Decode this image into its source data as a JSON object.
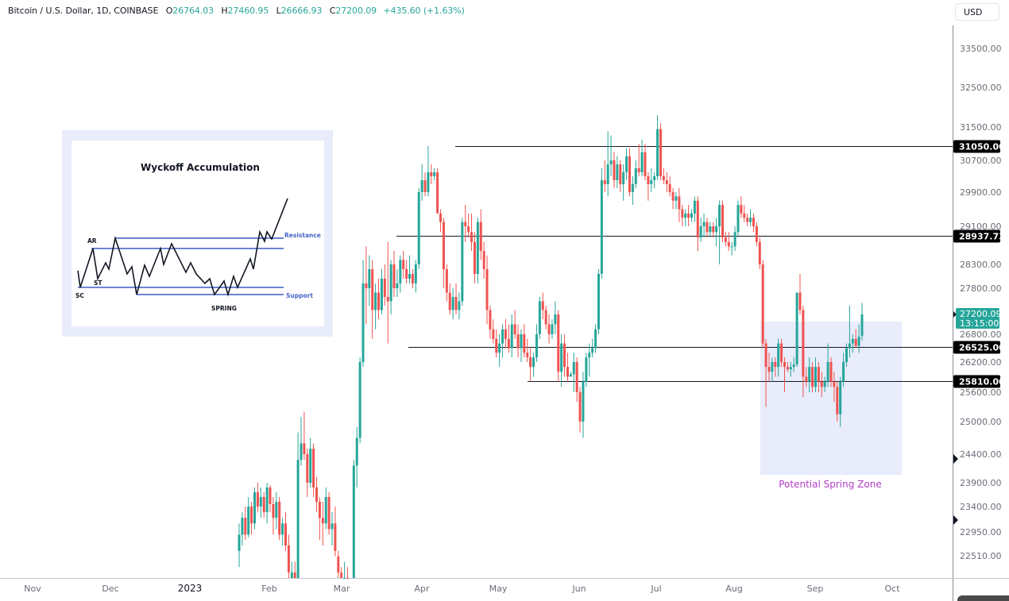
{
  "header": {
    "symbol": "Bitcoin / U.S. Dollar, 1D, COINBASE",
    "open_label": "O",
    "open": "26764.03",
    "high_label": "H",
    "high": "27460.95",
    "low_label": "L",
    "low": "26666.93",
    "close_label": "C",
    "close": "27200.09",
    "change": "+435.60 (+1.63%)"
  },
  "currency_button": "USD",
  "colors": {
    "up": "#26a69a",
    "down": "#ef5350",
    "level_line": "#131722",
    "zone_fill": "#e8ecfb",
    "zone_text": "#b13ec9",
    "resistance_blue": "#4a64c9"
  },
  "inset": {
    "title": "Wyckoff Accumulation",
    "labels": {
      "ar": "AR",
      "st": "ST",
      "sc": "SC",
      "spring": "SPRING",
      "resistance": "Resistance",
      "support": "Support"
    }
  },
  "zone": {
    "label": "Potential Spring Zone"
  },
  "chart_data": {
    "type": "candlestick",
    "title": "Bitcoin / U.S. Dollar, 1D, COINBASE",
    "xlabel": "",
    "ylabel": "USD",
    "scale": "log",
    "ylim": [
      22300,
      33900
    ],
    "y_ticks": [
      "33500.00",
      "32500.00",
      "31500.00",
      "30700.00",
      "29900.00",
      "29100.00",
      "28300.00",
      "27800.00",
      "26800.00",
      "26200.00",
      "25600.00",
      "25000.00",
      "24400.00",
      "23900.00",
      "23400.00",
      "22950.00",
      "22510.00"
    ],
    "x_ticks": [
      "Nov",
      "Dec",
      "2023",
      "Feb",
      "Mar",
      "Apr",
      "May",
      "Jun",
      "Jul",
      "Aug",
      "Sep",
      "Oct"
    ],
    "last_price": {
      "value": "27200.09",
      "countdown": "13:15:00"
    },
    "horizontal_levels": [
      {
        "price": 31050.0,
        "label": "31050.00",
        "start": "Apr 13"
      },
      {
        "price": 28937.73,
        "label": "28937.73",
        "start": "Mar 20"
      },
      {
        "price": 26525.0,
        "label": "26525.00",
        "start": "Mar 24"
      },
      {
        "price": 25810.0,
        "label": "25810.00",
        "start": "May 12"
      }
    ],
    "zones": [
      {
        "label": "Potential Spring Zone",
        "from": "Aug 15",
        "to": "Oct 10",
        "top": 27060,
        "bottom": 24000
      }
    ],
    "annotations": [
      "Wyckoff Accumulation inset (AR, ST, SC, SPRING, Resistance, Support)"
    ],
    "ohlc_note": "Daily candles approx. Jan 20 2023 – Sep 19 2023 (values estimated from pixels)",
    "candles": [
      [
        22600,
        23100,
        22300,
        22900
      ],
      [
        22900,
        23300,
        22700,
        23200
      ],
      [
        23200,
        23400,
        22800,
        22900
      ],
      [
        22900,
        23600,
        22850,
        23400
      ],
      [
        23400,
        23500,
        22900,
        23100
      ],
      [
        23100,
        23800,
        23000,
        23700
      ],
      [
        23700,
        23900,
        23300,
        23400
      ],
      [
        23400,
        23800,
        23200,
        23600
      ],
      [
        23600,
        23700,
        23200,
        23300
      ],
      [
        23300,
        23900,
        23100,
        23800
      ],
      [
        23800,
        23850,
        23300,
        23450
      ],
      [
        23450,
        23600,
        22900,
        23200
      ],
      [
        23200,
        23700,
        23000,
        23500
      ],
      [
        23500,
        23600,
        22800,
        22900
      ],
      [
        22900,
        23200,
        22700,
        23100
      ],
      [
        23100,
        23300,
        22600,
        22700
      ],
      [
        22700,
        22900,
        22000,
        22200
      ],
      [
        21800,
        22400,
        21500,
        22200
      ],
      [
        22200,
        22400,
        21700,
        21800
      ],
      [
        21900,
        24800,
        21800,
        24300
      ],
      [
        24300,
        25100,
        24200,
        24600
      ],
      [
        24600,
        25200,
        24300,
        24400
      ],
      [
        24400,
        24500,
        23600,
        23900
      ],
      [
        23900,
        24700,
        23800,
        24500
      ],
      [
        24500,
        24600,
        23600,
        23800
      ],
      [
        23800,
        24000,
        23300,
        23500
      ],
      [
        23500,
        23600,
        22800,
        23200
      ],
      [
        23200,
        23500,
        22700,
        23100
      ],
      [
        23100,
        23800,
        23000,
        23600
      ],
      [
        23600,
        23700,
        22900,
        23000
      ],
      [
        23000,
        23300,
        22700,
        23100
      ],
      [
        23100,
        23400,
        22500,
        22600
      ],
      [
        22500,
        22600,
        22100,
        22200
      ],
      [
        22200,
        22300,
        21900,
        22000
      ],
      [
        22000,
        22400,
        21900,
        22100
      ],
      [
        22100,
        22300,
        21700,
        21800
      ],
      [
        21800,
        22000,
        21500,
        21700
      ],
      [
        21700,
        24300,
        21600,
        24200
      ],
      [
        24200,
        24900,
        23800,
        24700
      ],
      [
        24700,
        26300,
        24600,
        26200
      ],
      [
        26200,
        28400,
        26100,
        27900
      ],
      [
        27900,
        28700,
        27000,
        27800
      ],
      [
        27800,
        28500,
        27400,
        28200
      ],
      [
        28200,
        28400,
        26700,
        27300
      ],
      [
        27300,
        27900,
        26900,
        27700
      ],
      [
        27700,
        28000,
        27100,
        27300
      ],
      [
        27300,
        28200,
        27200,
        28000
      ],
      [
        28000,
        28300,
        27400,
        27600
      ],
      [
        27600,
        28800,
        26600,
        27500
      ],
      [
        27500,
        28400,
        27200,
        28300
      ],
      [
        28300,
        28600,
        27600,
        27800
      ],
      [
        27800,
        28200,
        27600,
        27900
      ],
      [
        27900,
        28500,
        27700,
        28400
      ],
      [
        28400,
        28600,
        28000,
        28200
      ],
      [
        28200,
        28400,
        27900,
        28000
      ],
      [
        28000,
        28500,
        27900,
        28100
      ],
      [
        28100,
        28200,
        27800,
        27900
      ],
      [
        27900,
        28400,
        27700,
        28300
      ],
      [
        28300,
        30000,
        28200,
        29900
      ],
      [
        29900,
        30600,
        29700,
        30200
      ],
      [
        30200,
        30400,
        29800,
        29900
      ],
      [
        29900,
        31050,
        29800,
        30400
      ],
      [
        30400,
        30600,
        30100,
        30300
      ],
      [
        30300,
        30500,
        30200,
        30400
      ],
      [
        30400,
        30500,
        29500,
        29400
      ],
      [
        29400,
        29500,
        29000,
        29200
      ],
      [
        29200,
        29300,
        27800,
        28200
      ],
      [
        28200,
        28300,
        27500,
        27700
      ],
      [
        27700,
        27900,
        27200,
        27300
      ],
      [
        27300,
        27800,
        27100,
        27600
      ],
      [
        27600,
        27900,
        27200,
        27300
      ],
      [
        27300,
        27700,
        27100,
        27500
      ],
      [
        27500,
        29300,
        27400,
        29200
      ],
      [
        29200,
        29600,
        28800,
        29100
      ],
      [
        29100,
        29400,
        28900,
        29000
      ],
      [
        29000,
        29400,
        28600,
        28800
      ],
      [
        28800,
        29000,
        27900,
        28100
      ],
      [
        28100,
        29300,
        27900,
        29200
      ],
      [
        29200,
        29500,
        28400,
        28600
      ],
      [
        28600,
        28800,
        28000,
        28200
      ],
      [
        28200,
        28500,
        27000,
        27300
      ],
      [
        27300,
        27400,
        26700,
        26900
      ],
      [
        26900,
        27100,
        26600,
        26700
      ],
      [
        26700,
        26900,
        26300,
        26400
      ],
      [
        26400,
        26800,
        26100,
        26600
      ],
      [
        26600,
        27000,
        26300,
        26900
      ],
      [
        26900,
        27100,
        26500,
        26700
      ],
      [
        26700,
        27000,
        26400,
        26500
      ],
      [
        26500,
        27200,
        26300,
        27000
      ],
      [
        27000,
        27300,
        26700,
        26800
      ],
      [
        26800,
        27000,
        26300,
        26500
      ],
      [
        26500,
        26900,
        26200,
        26800
      ],
      [
        26800,
        27000,
        26300,
        26400
      ],
      [
        26400,
        26700,
        26200,
        26300
      ],
      [
        26300,
        26500,
        25800,
        26100
      ],
      [
        26100,
        26400,
        25900,
        26300
      ],
      [
        26300,
        27000,
        26200,
        26800
      ],
      [
        26800,
        27600,
        26700,
        27500
      ],
      [
        27500,
        27700,
        27100,
        27300
      ],
      [
        27300,
        27400,
        26900,
        27000
      ],
      [
        27000,
        27200,
        26600,
        26800
      ],
      [
        26800,
        27100,
        26700,
        27000
      ],
      [
        27000,
        27500,
        26800,
        27200
      ],
      [
        27200,
        27300,
        25800,
        26000
      ],
      [
        26000,
        26800,
        25700,
        26600
      ],
      [
        26600,
        26800,
        25900,
        26100
      ],
      [
        26100,
        26400,
        25800,
        25900
      ],
      [
        25900,
        26000,
        25900,
        25950
      ],
      [
        25950,
        26400,
        25600,
        26200
      ],
      [
        26200,
        26300,
        25400,
        25600
      ],
      [
        25600,
        25700,
        24800,
        25000
      ],
      [
        25000,
        26000,
        24700,
        25800
      ],
      [
        25800,
        26400,
        25700,
        26300
      ],
      [
        26300,
        26600,
        25900,
        26400
      ],
      [
        26400,
        26700,
        26300,
        26500
      ],
      [
        26500,
        27000,
        26400,
        26900
      ],
      [
        26900,
        28200,
        26800,
        28100
      ],
      [
        28100,
        30500,
        28000,
        30200
      ],
      [
        30200,
        30700,
        29900,
        30100
      ],
      [
        30100,
        31400,
        29800,
        30600
      ],
      [
        30600,
        31300,
        30300,
        30700
      ],
      [
        30700,
        30900,
        30000,
        30200
      ],
      [
        30200,
        30800,
        30000,
        30600
      ],
      [
        30600,
        30700,
        29900,
        30100
      ],
      [
        30100,
        30600,
        29700,
        30400
      ],
      [
        30400,
        31000,
        30200,
        30800
      ],
      [
        30800,
        31000,
        29800,
        29900
      ],
      [
        29900,
        30300,
        29600,
        30100
      ],
      [
        30100,
        30700,
        30000,
        30500
      ],
      [
        30500,
        31100,
        30300,
        30400
      ],
      [
        30400,
        31200,
        30300,
        30900
      ],
      [
        30900,
        31100,
        30200,
        30300
      ],
      [
        30300,
        30400,
        29700,
        30100
      ],
      [
        30100,
        30500,
        29900,
        30200
      ],
      [
        30200,
        30400,
        30000,
        30300
      ],
      [
        30300,
        31800,
        30200,
        31450
      ],
      [
        31450,
        31600,
        30200,
        30300
      ],
      [
        30300,
        30500,
        30100,
        30200
      ],
      [
        30200,
        30400,
        29900,
        30100
      ],
      [
        30100,
        30300,
        29800,
        29900
      ],
      [
        29900,
        30000,
        29500,
        29700
      ],
      [
        29700,
        29900,
        29500,
        29800
      ],
      [
        29800,
        30000,
        29200,
        29500
      ],
      [
        29500,
        29600,
        29100,
        29300
      ],
      [
        29300,
        29500,
        29100,
        29400
      ],
      [
        29400,
        29600,
        29100,
        29300
      ],
      [
        29300,
        29500,
        29200,
        29400
      ],
      [
        29400,
        29800,
        29200,
        29700
      ],
      [
        29700,
        29800,
        28600,
        28900
      ],
      [
        28900,
        29300,
        28800,
        29100
      ],
      [
        29100,
        29400,
        28900,
        29200
      ],
      [
        29200,
        29300,
        28900,
        29000
      ],
      [
        29000,
        29200,
        28900,
        29100
      ],
      [
        29100,
        29200,
        28900,
        29000
      ],
      [
        29000,
        29300,
        28700,
        29100
      ],
      [
        29100,
        29700,
        28300,
        29600
      ],
      [
        29600,
        29700,
        28800,
        28900
      ],
      [
        28900,
        29000,
        28700,
        28800
      ],
      [
        28800,
        29000,
        28600,
        28700
      ],
      [
        28700,
        28800,
        28500,
        28700
      ],
      [
        28700,
        29100,
        28600,
        29000
      ],
      [
        29000,
        29700,
        28900,
        29600
      ],
      [
        29600,
        29800,
        29300,
        29400
      ],
      [
        29400,
        29600,
        29200,
        29300
      ],
      [
        29300,
        29400,
        29100,
        29200
      ],
      [
        29200,
        29500,
        29100,
        29300
      ],
      [
        29300,
        29400,
        29000,
        29100
      ],
      [
        29100,
        29200,
        28700,
        28800
      ],
      [
        28800,
        28900,
        28200,
        28300
      ],
      [
        28300,
        28400,
        26500,
        26600
      ],
      [
        26600,
        26700,
        25300,
        26100
      ],
      [
        26100,
        26400,
        25800,
        26000
      ],
      [
        26000,
        26300,
        25800,
        26200
      ],
      [
        26200,
        26300,
        25900,
        26100
      ],
      [
        26100,
        26700,
        25900,
        26600
      ],
      [
        26600,
        26700,
        26100,
        26200
      ],
      [
        26200,
        26300,
        25600,
        26100
      ],
      [
        26100,
        26200,
        26000,
        26050
      ],
      [
        26050,
        26200,
        25900,
        26100
      ],
      [
        26100,
        26300,
        26000,
        26150
      ],
      [
        26150,
        27700,
        26100,
        27700
      ],
      [
        27700,
        28100,
        27200,
        27300
      ],
      [
        27300,
        27400,
        25500,
        25900
      ],
      [
        25900,
        26100,
        25700,
        25800
      ],
      [
        25800,
        26300,
        25600,
        26100
      ],
      [
        26100,
        26200,
        25600,
        25700
      ],
      [
        25700,
        26300,
        25600,
        26100
      ],
      [
        26100,
        26200,
        25600,
        25800
      ],
      [
        25800,
        26000,
        25500,
        25700
      ],
      [
        25700,
        25900,
        25600,
        25800
      ],
      [
        25800,
        26600,
        25700,
        26200
      ],
      [
        26200,
        26300,
        25700,
        25800
      ],
      [
        25800,
        26000,
        25400,
        25700
      ],
      [
        25700,
        25800,
        25000,
        25150
      ],
      [
        25150,
        25900,
        24900,
        25800
      ],
      [
        25800,
        26400,
        25700,
        26200
      ],
      [
        26200,
        26600,
        26100,
        26500
      ],
      [
        26500,
        27400,
        26300,
        26600
      ],
      [
        26600,
        26800,
        26400,
        26700
      ],
      [
        26700,
        26900,
        26500,
        26550
      ],
      [
        26550,
        27000,
        26400,
        26750
      ],
      [
        26764,
        27461,
        26667,
        27200
      ]
    ]
  }
}
